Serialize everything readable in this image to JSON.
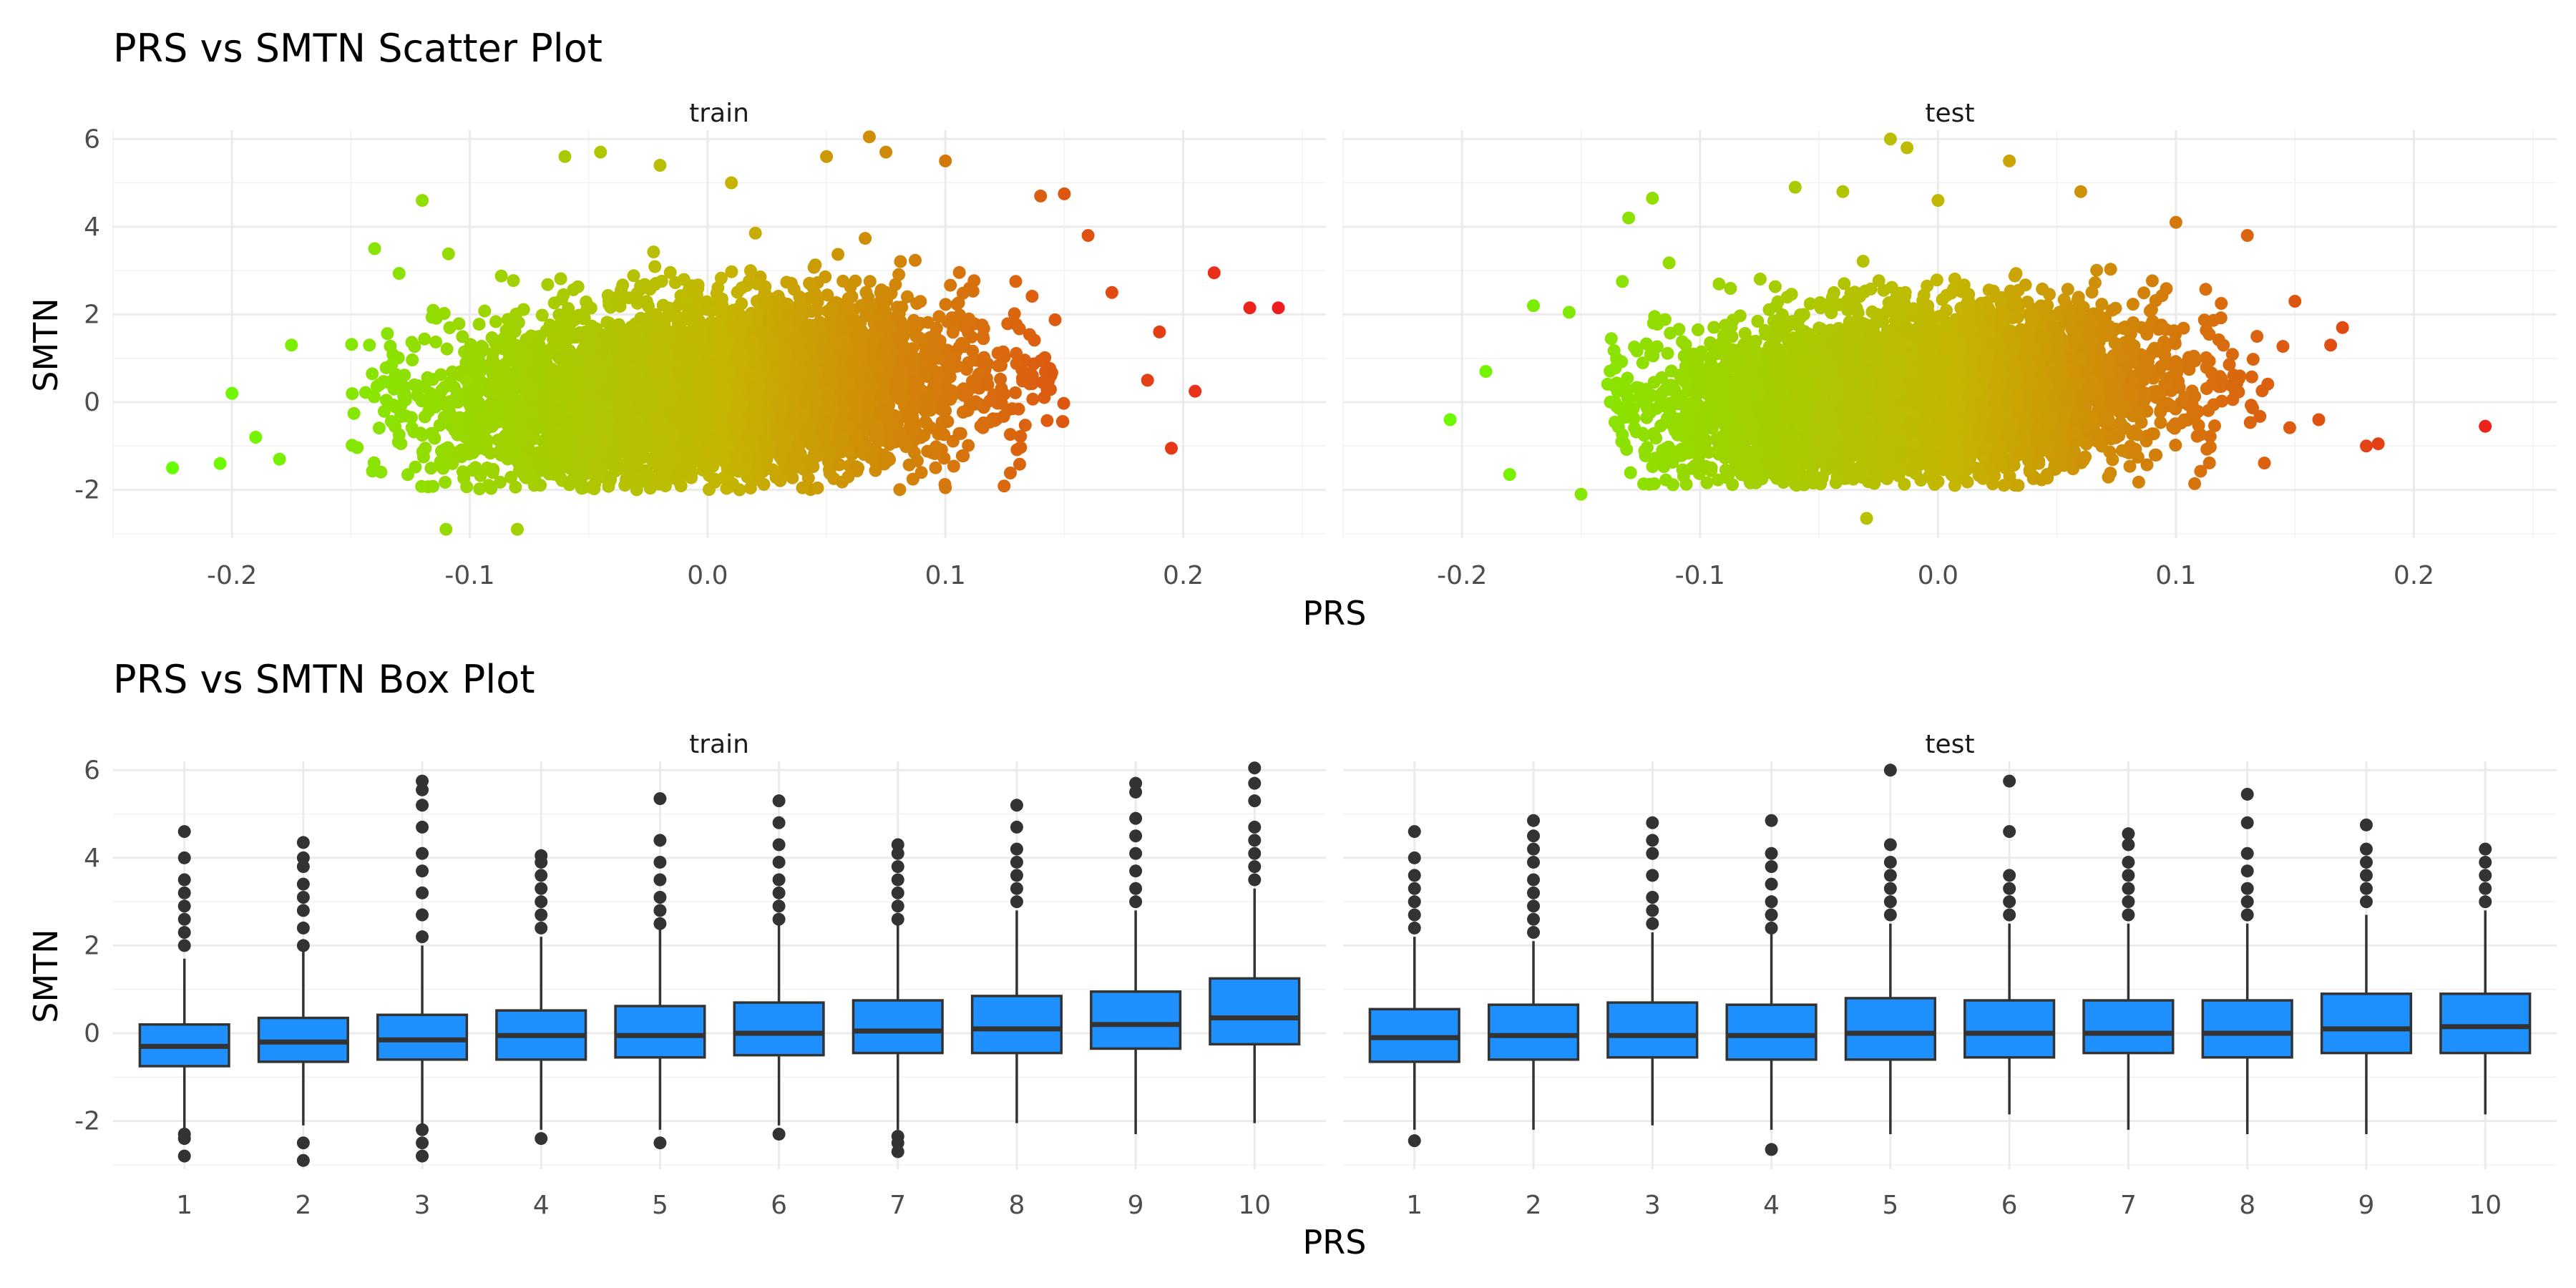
{
  "chart_data": [
    {
      "type": "scatter",
      "title": "PRS vs SMTN Scatter Plot",
      "xlabel": "PRS",
      "ylabel": "SMTN",
      "facets": [
        "train",
        "test"
      ],
      "xlim": [
        -0.25,
        0.26
      ],
      "ylim": [
        -3.1,
        6.2
      ],
      "x_ticks": [
        -0.2,
        -0.1,
        0.0,
        0.1,
        0.2
      ],
      "x_tick_labels": [
        "-0.2",
        "-0.1",
        "0.0",
        "0.1",
        "0.2"
      ],
      "y_ticks": [
        -2,
        0,
        2,
        4,
        6
      ],
      "y_tick_labels": [
        "-2",
        "0",
        "2",
        "4",
        "6"
      ],
      "color_low": "#66ff00",
      "color_mid": "#c5b500",
      "color_high": "#ee1c1c",
      "color_scale": "PRS value (green low to red high)",
      "series": [
        {
          "facet": "train",
          "x_mean": 0.0,
          "x_sd": 0.055,
          "y_mean": 0.2,
          "y_sd": 1.0,
          "cloud_x_range": [
            -0.15,
            0.15
          ],
          "cloud_y_range": [
            -2.0,
            4.0
          ],
          "outliers": [
            {
              "x": -0.225,
              "y": -1.5
            },
            {
              "x": -0.205,
              "y": -1.4
            },
            {
              "x": -0.2,
              "y": 0.2
            },
            {
              "x": -0.19,
              "y": -0.8
            },
            {
              "x": -0.18,
              "y": -1.3
            },
            {
              "x": -0.175,
              "y": 1.3
            },
            {
              "x": -0.14,
              "y": 3.5
            },
            {
              "x": -0.12,
              "y": 4.6
            },
            {
              "x": -0.11,
              "y": -2.9
            },
            {
              "x": -0.08,
              "y": -2.9
            },
            {
              "x": -0.06,
              "y": 5.6
            },
            {
              "x": -0.045,
              "y": 5.7
            },
            {
              "x": -0.02,
              "y": 5.4
            },
            {
              "x": 0.01,
              "y": 5.0
            },
            {
              "x": 0.05,
              "y": 5.6
            },
            {
              "x": 0.068,
              "y": 6.05
            },
            {
              "x": 0.075,
              "y": 5.7
            },
            {
              "x": 0.1,
              "y": 5.5
            },
            {
              "x": 0.14,
              "y": 4.7
            },
            {
              "x": 0.15,
              "y": 4.75
            },
            {
              "x": 0.16,
              "y": 3.8
            },
            {
              "x": 0.17,
              "y": 2.5
            },
            {
              "x": 0.185,
              "y": 0.5
            },
            {
              "x": 0.19,
              "y": 1.6
            },
            {
              "x": 0.195,
              "y": -1.05
            },
            {
              "x": 0.205,
              "y": 0.25
            },
            {
              "x": 0.213,
              "y": 2.95
            },
            {
              "x": 0.228,
              "y": 2.15
            },
            {
              "x": 0.24,
              "y": 2.15
            },
            {
              "x": 0.1,
              "y": -1.95
            }
          ]
        },
        {
          "facet": "test",
          "x_mean": -0.01,
          "x_sd": 0.052,
          "y_mean": 0.15,
          "y_sd": 0.95,
          "cloud_x_range": [
            -0.14,
            0.15
          ],
          "cloud_y_range": [
            -1.9,
            3.5
          ],
          "outliers": [
            {
              "x": -0.205,
              "y": -0.4
            },
            {
              "x": -0.19,
              "y": 0.7
            },
            {
              "x": -0.18,
              "y": -1.65
            },
            {
              "x": -0.17,
              "y": 2.2
            },
            {
              "x": -0.155,
              "y": 2.05
            },
            {
              "x": -0.15,
              "y": -2.1
            },
            {
              "x": -0.13,
              "y": 4.2
            },
            {
              "x": -0.12,
              "y": 4.65
            },
            {
              "x": -0.06,
              "y": 4.9
            },
            {
              "x": -0.04,
              "y": 4.8
            },
            {
              "x": -0.02,
              "y": 6.0
            },
            {
              "x": -0.013,
              "y": 5.8
            },
            {
              "x": 0.0,
              "y": 4.6
            },
            {
              "x": 0.03,
              "y": 5.5
            },
            {
              "x": 0.06,
              "y": 4.8
            },
            {
              "x": 0.1,
              "y": 4.1
            },
            {
              "x": 0.13,
              "y": 3.8
            },
            {
              "x": 0.15,
              "y": 2.3
            },
            {
              "x": 0.17,
              "y": 1.7
            },
            {
              "x": 0.165,
              "y": 1.3
            },
            {
              "x": 0.16,
              "y": -0.4
            },
            {
              "x": 0.18,
              "y": -1.0
            },
            {
              "x": 0.185,
              "y": -0.95
            },
            {
              "x": 0.23,
              "y": -0.55
            },
            {
              "x": -0.03,
              "y": -2.65
            }
          ]
        }
      ]
    },
    {
      "type": "box",
      "title": "PRS vs SMTN Box Plot",
      "xlabel": "PRS",
      "ylabel": "SMTN",
      "facets": [
        "train",
        "test"
      ],
      "categories": [
        "1",
        "2",
        "3",
        "4",
        "5",
        "6",
        "7",
        "8",
        "9",
        "10"
      ],
      "ylim": [
        -3.1,
        6.2
      ],
      "y_ticks": [
        -2,
        0,
        2,
        4,
        6
      ],
      "y_tick_labels": [
        "-2",
        "0",
        "2",
        "4",
        "6"
      ],
      "fill_color": "#1e90ff",
      "series": [
        {
          "facet": "train",
          "boxes": [
            {
              "q1": -0.75,
              "median": -0.3,
              "q3": 0.2,
              "whisker_low": -2.2,
              "whisker_high": 1.7,
              "outliers": [
                -2.3,
                -2.4,
                -2.8,
                2.0,
                2.3,
                2.6,
                2.9,
                3.2,
                3.5,
                4.0,
                4.6
              ]
            },
            {
              "q1": -0.65,
              "median": -0.2,
              "q3": 0.35,
              "whisker_low": -2.1,
              "whisker_high": 1.9,
              "outliers": [
                -2.5,
                -2.9,
                2.0,
                2.4,
                2.8,
                3.1,
                3.4,
                3.8,
                4.0,
                4.35
              ]
            },
            {
              "q1": -0.6,
              "median": -0.15,
              "q3": 0.42,
              "whisker_low": -2.1,
              "whisker_high": 2.0,
              "outliers": [
                -2.2,
                -2.5,
                -2.8,
                2.2,
                2.7,
                3.2,
                3.7,
                4.1,
                4.7,
                5.2,
                5.55,
                5.75
              ]
            },
            {
              "q1": -0.6,
              "median": -0.05,
              "q3": 0.52,
              "whisker_low": -2.2,
              "whisker_high": 2.2,
              "outliers": [
                -2.4,
                2.4,
                2.7,
                3.0,
                3.3,
                3.6,
                3.9,
                4.05
              ]
            },
            {
              "q1": -0.55,
              "median": -0.05,
              "q3": 0.62,
              "whisker_low": -2.2,
              "whisker_high": 2.4,
              "outliers": [
                -2.5,
                2.5,
                2.8,
                3.1,
                3.5,
                3.9,
                4.4,
                5.35
              ]
            },
            {
              "q1": -0.5,
              "median": 0.0,
              "q3": 0.7,
              "whisker_low": -2.1,
              "whisker_high": 2.5,
              "outliers": [
                -2.3,
                2.6,
                2.9,
                3.2,
                3.5,
                3.9,
                4.3,
                4.8,
                5.3
              ]
            },
            {
              "q1": -0.45,
              "median": 0.05,
              "q3": 0.75,
              "whisker_low": -2.2,
              "whisker_high": 2.5,
              "outliers": [
                -2.35,
                -2.5,
                -2.7,
                2.6,
                2.9,
                3.2,
                3.5,
                3.8,
                4.1,
                4.3
              ]
            },
            {
              "q1": -0.45,
              "median": 0.1,
              "q3": 0.85,
              "whisker_low": -2.05,
              "whisker_high": 2.8,
              "outliers": [
                3.0,
                3.3,
                3.6,
                3.9,
                4.2,
                4.7,
                5.2
              ]
            },
            {
              "q1": -0.35,
              "median": 0.2,
              "q3": 0.95,
              "whisker_low": -2.3,
              "whisker_high": 2.8,
              "outliers": [
                3.0,
                3.3,
                3.7,
                4.1,
                4.5,
                4.9,
                5.5,
                5.7
              ]
            },
            {
              "q1": -0.25,
              "median": 0.35,
              "q3": 1.25,
              "whisker_low": -2.05,
              "whisker_high": 3.3,
              "outliers": [
                3.5,
                3.8,
                4.1,
                4.4,
                4.7,
                5.3,
                5.7,
                6.05
              ]
            }
          ]
        },
        {
          "facet": "test",
          "boxes": [
            {
              "q1": -0.65,
              "median": -0.1,
              "q3": 0.55,
              "whisker_low": -2.2,
              "whisker_high": 2.2,
              "outliers": [
                -2.45,
                2.4,
                2.7,
                3.0,
                3.3,
                3.6,
                4.0,
                4.6
              ]
            },
            {
              "q1": -0.6,
              "median": -0.05,
              "q3": 0.65,
              "whisker_low": -2.2,
              "whisker_high": 2.1,
              "outliers": [
                2.3,
                2.6,
                2.9,
                3.2,
                3.5,
                3.9,
                4.2,
                4.5,
                4.85
              ]
            },
            {
              "q1": -0.55,
              "median": -0.05,
              "q3": 0.7,
              "whisker_low": -2.1,
              "whisker_high": 2.3,
              "outliers": [
                2.5,
                2.8,
                3.1,
                3.6,
                4.1,
                4.4,
                4.8
              ]
            },
            {
              "q1": -0.6,
              "median": -0.05,
              "q3": 0.65,
              "whisker_low": -2.2,
              "whisker_high": 2.3,
              "outliers": [
                -2.65,
                2.4,
                2.7,
                3.0,
                3.4,
                3.8,
                4.1,
                4.85
              ]
            },
            {
              "q1": -0.6,
              "median": 0.0,
              "q3": 0.8,
              "whisker_low": -2.3,
              "whisker_high": 2.5,
              "outliers": [
                2.7,
                3.0,
                3.3,
                3.6,
                3.9,
                4.3,
                6.0
              ]
            },
            {
              "q1": -0.55,
              "median": 0.0,
              "q3": 0.75,
              "whisker_low": -1.85,
              "whisker_high": 2.5,
              "outliers": [
                2.7,
                3.0,
                3.3,
                3.6,
                4.6,
                5.75
              ]
            },
            {
              "q1": -0.45,
              "median": 0.0,
              "q3": 0.75,
              "whisker_low": -2.2,
              "whisker_high": 2.5,
              "outliers": [
                2.7,
                3.0,
                3.3,
                3.6,
                3.9,
                4.3,
                4.55
              ]
            },
            {
              "q1": -0.55,
              "median": 0.0,
              "q3": 0.75,
              "whisker_low": -2.3,
              "whisker_high": 2.5,
              "outliers": [
                2.7,
                3.0,
                3.3,
                3.7,
                4.1,
                4.8,
                5.45
              ]
            },
            {
              "q1": -0.45,
              "median": 0.1,
              "q3": 0.9,
              "whisker_low": -2.3,
              "whisker_high": 2.7,
              "outliers": [
                3.0,
                3.3,
                3.6,
                3.9,
                4.2,
                4.75
              ]
            },
            {
              "q1": -0.45,
              "median": 0.15,
              "q3": 0.9,
              "whisker_low": -1.85,
              "whisker_high": 2.8,
              "outliers": [
                3.0,
                3.3,
                3.6,
                3.9,
                4.2
              ]
            }
          ]
        }
      ]
    }
  ]
}
